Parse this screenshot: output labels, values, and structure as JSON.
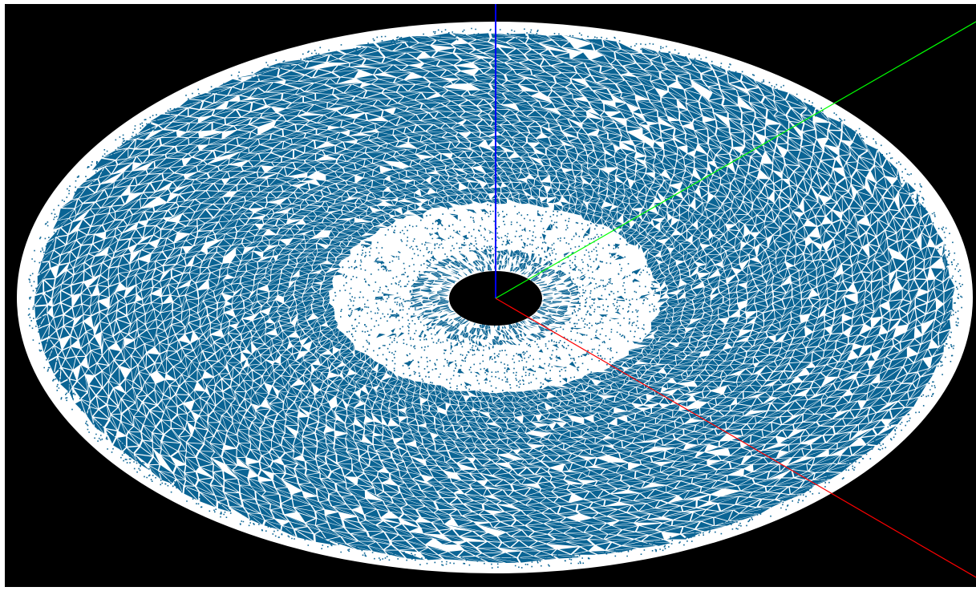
{
  "viewport": {
    "background_color": "#000000",
    "frame_color": "#ffffff"
  },
  "mesh": {
    "type": "annular-disk-triangulation",
    "background_color": "#ffffff",
    "triangle_color": "#0a6494",
    "edge_color": "#ffffff",
    "hole_color": "#000000",
    "view": "perspective-oblique"
  },
  "axes": {
    "x": {
      "color": "#ff0000"
    },
    "y": {
      "color": "#00ff00"
    },
    "z": {
      "color": "#0000ff"
    }
  }
}
